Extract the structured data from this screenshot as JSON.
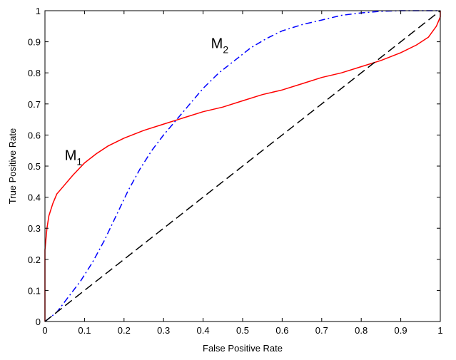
{
  "chart_data": {
    "type": "line",
    "title": "",
    "xlabel": "False Positive Rate",
    "ylabel": "True Positive Rate",
    "xlim": [
      0,
      1
    ],
    "ylim": [
      0,
      1
    ],
    "grid": false,
    "x_ticks": [
      "0",
      "0.1",
      "0.2",
      "0.3",
      "0.4",
      "0.5",
      "0.6",
      "0.7",
      "0.8",
      "0.9",
      "1"
    ],
    "y_ticks": [
      "0",
      "0.1",
      "0.2",
      "0.3",
      "0.4",
      "0.5",
      "0.6",
      "0.7",
      "0.8",
      "0.9",
      "1"
    ],
    "series": [
      {
        "color": "#ff0000",
        "style": "solid",
        "points": [
          [
            0,
            0
          ],
          [
            0,
            0.23
          ],
          [
            0.005,
            0.3
          ],
          [
            0.01,
            0.34
          ],
          [
            0.02,
            0.38
          ],
          [
            0.03,
            0.41
          ],
          [
            0.05,
            0.44
          ],
          [
            0.07,
            0.47
          ],
          [
            0.1,
            0.51
          ],
          [
            0.13,
            0.54
          ],
          [
            0.16,
            0.565
          ],
          [
            0.2,
            0.59
          ],
          [
            0.25,
            0.615
          ],
          [
            0.3,
            0.635
          ],
          [
            0.35,
            0.655
          ],
          [
            0.4,
            0.675
          ],
          [
            0.45,
            0.69
          ],
          [
            0.5,
            0.71
          ],
          [
            0.55,
            0.73
          ],
          [
            0.6,
            0.745
          ],
          [
            0.65,
            0.765
          ],
          [
            0.7,
            0.785
          ],
          [
            0.75,
            0.8
          ],
          [
            0.8,
            0.82
          ],
          [
            0.85,
            0.84
          ],
          [
            0.9,
            0.865
          ],
          [
            0.94,
            0.89
          ],
          [
            0.97,
            0.915
          ],
          [
            0.99,
            0.95
          ],
          [
            1.0,
            0.98
          ],
          [
            1.0,
            1.0
          ]
        ]
      },
      {
        "color": "#0000ff",
        "style": "dashdot",
        "points": [
          [
            0,
            0
          ],
          [
            0.03,
            0.03
          ],
          [
            0.06,
            0.08
          ],
          [
            0.09,
            0.13
          ],
          [
            0.12,
            0.19
          ],
          [
            0.15,
            0.26
          ],
          [
            0.18,
            0.34
          ],
          [
            0.21,
            0.42
          ],
          [
            0.24,
            0.49
          ],
          [
            0.27,
            0.55
          ],
          [
            0.3,
            0.6
          ],
          [
            0.33,
            0.645
          ],
          [
            0.36,
            0.69
          ],
          [
            0.4,
            0.75
          ],
          [
            0.44,
            0.8
          ],
          [
            0.48,
            0.84
          ],
          [
            0.52,
            0.88
          ],
          [
            0.56,
            0.91
          ],
          [
            0.6,
            0.935
          ],
          [
            0.65,
            0.955
          ],
          [
            0.7,
            0.97
          ],
          [
            0.75,
            0.985
          ],
          [
            0.8,
            0.993
          ],
          [
            0.85,
            0.998
          ],
          [
            0.9,
            1.0
          ],
          [
            1.0,
            1.0
          ]
        ]
      },
      {
        "color": "#000000",
        "style": "dashed",
        "points": [
          [
            0,
            0
          ],
          [
            1,
            1
          ]
        ]
      }
    ],
    "annotations": [
      {
        "text": "M",
        "sub": "1",
        "x": 0.05,
        "y": 0.52
      },
      {
        "text": "M",
        "sub": "2",
        "x": 0.42,
        "y": 0.88
      }
    ]
  }
}
